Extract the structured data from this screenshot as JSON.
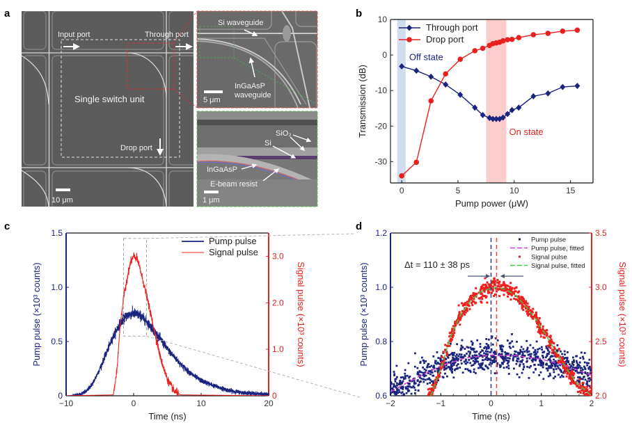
{
  "panel_labels": {
    "a": "a",
    "b": "b",
    "c": "c",
    "d": "d"
  },
  "panel_a": {
    "main_image": {
      "input_port": "Input port",
      "through_port": "Through port",
      "single_switch_unit": "Single switch unit",
      "drop_port": "Drop port",
      "scale_bar": "10 μm"
    },
    "inset_top": {
      "si_waveguide": "Si waveguide",
      "ingaasp_waveguide_line1": "InGaAsP",
      "ingaasp_waveguide_line2": "waveguide",
      "scale_bar": "5 μm"
    },
    "inset_bottom": {
      "sio2": "SiO₂",
      "si": "Si",
      "ingaasp": "InGaAsP",
      "ebeam_resist": "E-beam resist",
      "scale_bar": "1 μm"
    },
    "colors": {
      "image_gray": "#5c5c5c",
      "inset_top_border": "#d9534f",
      "inset_bottom_border": "#5cb85c"
    }
  },
  "chart_data": [
    {
      "panel": "b",
      "type": "line",
      "xlabel": "Pump power (μW)",
      "ylabel": "Transmission (dB)",
      "xlim": [
        -1,
        17
      ],
      "ylim": [
        -36,
        10
      ],
      "xticks": [
        "0",
        "5",
        "10",
        "15"
      ],
      "yticks": [
        "10",
        "0",
        "-10",
        "-20",
        "-30"
      ],
      "xtick_values": [
        0,
        5,
        10,
        15
      ],
      "ytick_values": [
        10,
        0,
        -10,
        -20,
        -30
      ],
      "legend_placement": "top-left",
      "x": [
        0,
        1.3,
        2.6,
        3.9,
        5.2,
        6.5,
        7.2,
        7.8,
        8.1,
        8.4,
        8.7,
        9.0,
        9.4,
        9.8,
        10.4,
        11.7,
        13.0,
        14.3,
        15.6
      ],
      "series": [
        {
          "name": "Through port",
          "color": "#1a237e",
          "marker": "diamond",
          "values": [
            -3.2,
            -4.4,
            -6.1,
            -8.3,
            -11.2,
            -14.8,
            -16.9,
            -17.7,
            -18.0,
            -18.0,
            -18.0,
            -17.6,
            -16.6,
            -15.5,
            -14.8,
            -11.6,
            -10.8,
            -9.0,
            -8.7
          ]
        },
        {
          "name": "Drop port",
          "color": "#e8201e",
          "marker": "circle",
          "values": [
            -34.0,
            -30.2,
            -12.9,
            -5.3,
            -1.2,
            1.2,
            1.9,
            2.7,
            3.2,
            3.4,
            3.6,
            4.0,
            4.3,
            4.4,
            4.9,
            5.7,
            6.1,
            6.7,
            7.0
          ]
        }
      ],
      "bands": [
        {
          "label": "Off state",
          "x_range": [
            -0.4,
            0.35
          ],
          "color": "#c9d6ea",
          "label_color": "#1a237e"
        },
        {
          "label": "On state",
          "x_range": [
            7.5,
            9.3
          ],
          "color": "#f9c4c4",
          "label_color": "#e8201e"
        }
      ]
    },
    {
      "panel": "c",
      "type": "line",
      "xlabel": "Time (ns)",
      "ylabel": "Pump pulse (×10³ counts)",
      "ylabel_right": "Signal pulse (×10³ counts)",
      "xlim": [
        -10,
        20
      ],
      "ylim": [
        0,
        1.5
      ],
      "ylim_right": [
        0,
        3.5
      ],
      "xticks": [
        "−10",
        "0",
        "10",
        "20"
      ],
      "xtick_values": [
        -10,
        0,
        10,
        20
      ],
      "yticks": [
        "0",
        "0.5",
        "1.0",
        "1.5"
      ],
      "ytick_values": [
        0,
        0.5,
        1.0,
        1.5
      ],
      "yticks_right": [
        "0",
        "1.0",
        "2.0",
        "3.0"
      ],
      "ytick_values_right": [
        0,
        1.0,
        2.0,
        3.0
      ],
      "legend_placement": "top-right",
      "zoom_region": {
        "x_range": [
          -1.5,
          1.9
        ],
        "y_range": [
          0.55,
          1.45
        ]
      },
      "series": [
        {
          "name": "Pump pulse",
          "color": "#1a237e",
          "axis": "left",
          "x": [
            -10,
            -8,
            -7,
            -6,
            -5,
            -4,
            -3,
            -2,
            -1,
            0,
            1,
            2,
            3,
            4,
            5,
            6,
            7,
            8,
            9,
            10,
            12,
            14,
            16,
            18,
            20
          ],
          "values": [
            0,
            0.01,
            0.04,
            0.12,
            0.25,
            0.4,
            0.55,
            0.67,
            0.74,
            0.76,
            0.74,
            0.68,
            0.6,
            0.52,
            0.43,
            0.36,
            0.29,
            0.23,
            0.18,
            0.14,
            0.09,
            0.05,
            0.03,
            0.02,
            0.01
          ]
        },
        {
          "name": "Signal pulse",
          "color": "#e8201e",
          "axis": "right",
          "x": [
            -10,
            -3,
            -2.5,
            -2,
            -1.5,
            -1,
            -0.5,
            0,
            0.5,
            1,
            2,
            3,
            4,
            5,
            6,
            7,
            20
          ],
          "values": [
            0,
            0.02,
            0.5,
            1.5,
            2.1,
            2.5,
            2.85,
            3.0,
            2.95,
            2.7,
            2.1,
            1.45,
            0.8,
            0.35,
            0.1,
            0.02,
            0
          ]
        }
      ]
    },
    {
      "panel": "d",
      "type": "scatter",
      "xlabel": "Time (ns)",
      "ylabel": "Pump pulse (×10³ counts)",
      "ylabel_right": "Signal pulse (×10³ counts)",
      "xlim": [
        -2,
        2
      ],
      "ylim": [
        0.6,
        1.2
      ],
      "ylim_right": [
        2.0,
        3.5
      ],
      "xticks": [
        "−2",
        "−1",
        "0",
        "1",
        "2"
      ],
      "xtick_values": [
        -2,
        -1,
        0,
        1,
        2
      ],
      "yticks": [
        "0.6",
        "0.8",
        "1.0",
        "1.2"
      ],
      "ytick_values": [
        0.6,
        0.8,
        1.0,
        1.2
      ],
      "yticks_right": [
        "2.0",
        "2.5",
        "3.0",
        "3.5"
      ],
      "ytick_values_right": [
        2.0,
        2.5,
        3.0,
        3.5
      ],
      "legend_placement": "top-right",
      "annotation": "Δt = 110 ± 38 ps",
      "peak_markers": [
        {
          "x": 0,
          "color": "#3b4a7a"
        },
        {
          "x": 0.11,
          "color": "#d9534f"
        }
      ],
      "series": [
        {
          "name": "Pump pulse",
          "color": "#1a237e",
          "style": "points",
          "axis": "left"
        },
        {
          "name": "Pump pulse, fitted",
          "color": "#d63ad6",
          "style": "dashed",
          "axis": "left",
          "x": [
            -2,
            -1.5,
            -1,
            -0.5,
            0,
            0.5,
            1,
            1.5,
            2
          ],
          "values": [
            0.615,
            0.665,
            0.71,
            0.74,
            0.75,
            0.748,
            0.735,
            0.71,
            0.675
          ]
        },
        {
          "name": "Signal pulse",
          "color": "#f01e1e",
          "style": "points",
          "axis": "right"
        },
        {
          "name": "Signal pulse, fitted",
          "color": "#3fc83f",
          "style": "dashed",
          "axis": "right",
          "x": [
            -1.2,
            -1,
            -0.8,
            -0.6,
            -0.4,
            -0.2,
            0,
            0.11,
            0.3,
            0.5,
            0.7,
            0.9,
            1.1,
            1.3,
            1.5,
            1.7,
            2.0
          ],
          "values": [
            2.0,
            2.25,
            2.55,
            2.75,
            2.88,
            2.96,
            2.99,
            3.0,
            2.98,
            2.92,
            2.82,
            2.7,
            2.55,
            2.4,
            2.25,
            2.12,
            2.0
          ]
        }
      ]
    }
  ]
}
